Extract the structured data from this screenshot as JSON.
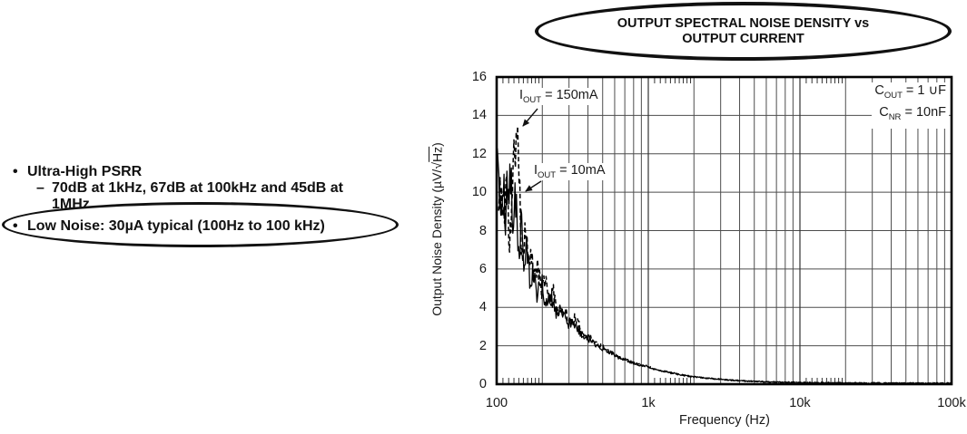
{
  "features": {
    "items": [
      {
        "marker": "•",
        "text": "Ultra-High PSRR"
      },
      {
        "marker": "–",
        "text": "70dB at 1kHz, 67dB at 100kHz and 45dB at"
      },
      {
        "marker": "",
        "text": "1MHz"
      },
      {
        "marker": "•",
        "text": "Low Noise: 30µA typical (100Hz to 100 kHz)"
      }
    ]
  },
  "chart": {
    "title_line1": "OUTPUT SPECTRAL NOISE DENSITY vs",
    "title_line2": "OUTPUT CURRENT",
    "xlabel": "Frequency (Hz)",
    "ylabel_main": "Output Noise Density (µV/√",
    "ylabel_overline": "Hz",
    "ylabel_close": ")",
    "annotations": {
      "iout150": {
        "prefix": "I",
        "sub": "OUT",
        "rest": " = 150mA"
      },
      "iout10": {
        "prefix": "I",
        "sub": "OUT",
        "rest": " = 10mA"
      },
      "cout": {
        "prefix": "C",
        "sub": "OUT",
        "rest": " = 1 ∪F"
      },
      "cnr": {
        "prefix": "C",
        "sub": "NR",
        "rest": " = 10nF"
      }
    }
  },
  "chart_data": {
    "type": "line",
    "title": "OUTPUT SPECTRAL NOISE DENSITY vs OUTPUT CURRENT",
    "xlabel": "Frequency (Hz)",
    "ylabel": "Output Noise Density (µV/√Hz)",
    "x_scale": "log",
    "xlim": [
      100,
      100000
    ],
    "ylim": [
      0,
      16
    ],
    "grid": true,
    "legend_position": "none",
    "x_tick_values": [
      100,
      1000,
      10000,
      100000
    ],
    "x_tick_labels": [
      "100",
      "1k",
      "10k",
      "100k"
    ],
    "y_tick_values": [
      0,
      2,
      4,
      6,
      8,
      10,
      12,
      14,
      16
    ],
    "y_tick_labels": [
      "0",
      "2",
      "4",
      "6",
      "8",
      "10",
      "12",
      "14",
      "16"
    ],
    "conditions": [
      "COUT = 1 ∪F",
      "CNR = 10nF"
    ],
    "noise": {
      "seed": 11,
      "amp": 0.16,
      "decay_ref": 100,
      "decay_exp": 0.55,
      "abs": 0.03
    },
    "series": [
      {
        "name": "IOUT = 150mA",
        "style": "dashed",
        "points": [
          [
            103,
            9.0
          ],
          [
            107,
            10.2
          ],
          [
            111,
            8.6
          ],
          [
            116,
            10.8
          ],
          [
            121,
            7.2
          ],
          [
            126,
            9.0
          ],
          [
            131,
            12.2
          ],
          [
            136,
            13.6
          ],
          [
            140,
            11.0
          ],
          [
            144,
            8.0
          ],
          [
            149,
            6.6
          ],
          [
            155,
            8.6
          ],
          [
            161,
            6.2
          ],
          [
            168,
            7.4
          ],
          [
            176,
            5.3
          ],
          [
            185,
            6.3
          ],
          [
            196,
            4.8
          ],
          [
            208,
            5.6
          ],
          [
            222,
            4.3
          ],
          [
            238,
            4.8
          ],
          [
            256,
            3.7
          ],
          [
            278,
            4.0
          ],
          [
            302,
            3.2
          ],
          [
            330,
            3.4
          ],
          [
            362,
            2.8
          ],
          [
            400,
            2.5
          ],
          [
            445,
            2.2
          ],
          [
            500,
            1.95
          ],
          [
            560,
            1.7
          ],
          [
            630,
            1.45
          ],
          [
            710,
            1.28
          ],
          [
            800,
            1.12
          ],
          [
            900,
            1.0
          ],
          [
            1000,
            0.9
          ],
          [
            1150,
            0.76
          ],
          [
            1350,
            0.62
          ],
          [
            1600,
            0.5
          ],
          [
            1900,
            0.4
          ],
          [
            2300,
            0.33
          ],
          [
            2800,
            0.27
          ],
          [
            3500,
            0.21
          ],
          [
            4500,
            0.16
          ],
          [
            6000,
            0.12
          ],
          [
            8000,
            0.1
          ],
          [
            11000,
            0.08
          ],
          [
            15000,
            0.07
          ],
          [
            22000,
            0.06
          ],
          [
            35000,
            0.05
          ],
          [
            60000,
            0.05
          ],
          [
            100000,
            0.05
          ]
        ]
      },
      {
        "name": "IOUT = 10mA",
        "style": "solid",
        "points": [
          [
            100,
            11.2
          ],
          [
            103,
            11.6
          ],
          [
            106,
            9.4
          ],
          [
            110,
            10.8
          ],
          [
            114,
            8.2
          ],
          [
            118,
            10.9
          ],
          [
            123,
            11.0
          ],
          [
            128,
            8.6
          ],
          [
            133,
            10.2
          ],
          [
            139,
            7.0
          ],
          [
            145,
            8.3
          ],
          [
            152,
            6.0
          ],
          [
            159,
            7.2
          ],
          [
            167,
            5.1
          ],
          [
            176,
            6.0
          ],
          [
            186,
            4.6
          ],
          [
            198,
            5.3
          ],
          [
            212,
            4.1
          ],
          [
            228,
            4.6
          ],
          [
            246,
            3.6
          ],
          [
            267,
            3.9
          ],
          [
            292,
            3.1
          ],
          [
            320,
            3.3
          ],
          [
            352,
            2.7
          ],
          [
            390,
            2.4
          ],
          [
            435,
            2.15
          ],
          [
            490,
            1.9
          ],
          [
            550,
            1.68
          ],
          [
            620,
            1.45
          ],
          [
            700,
            1.28
          ],
          [
            790,
            1.12
          ],
          [
            890,
            1.0
          ],
          [
            1000,
            0.9
          ],
          [
            1150,
            0.75
          ],
          [
            1350,
            0.62
          ],
          [
            1600,
            0.5
          ],
          [
            1900,
            0.41
          ],
          [
            2300,
            0.33
          ],
          [
            2800,
            0.27
          ],
          [
            3500,
            0.21
          ],
          [
            4500,
            0.16
          ],
          [
            6000,
            0.12
          ],
          [
            8000,
            0.1
          ],
          [
            11000,
            0.08
          ],
          [
            15000,
            0.07
          ],
          [
            22000,
            0.06
          ],
          [
            35000,
            0.05
          ],
          [
            60000,
            0.05
          ],
          [
            100000,
            0.05
          ]
        ]
      }
    ]
  }
}
